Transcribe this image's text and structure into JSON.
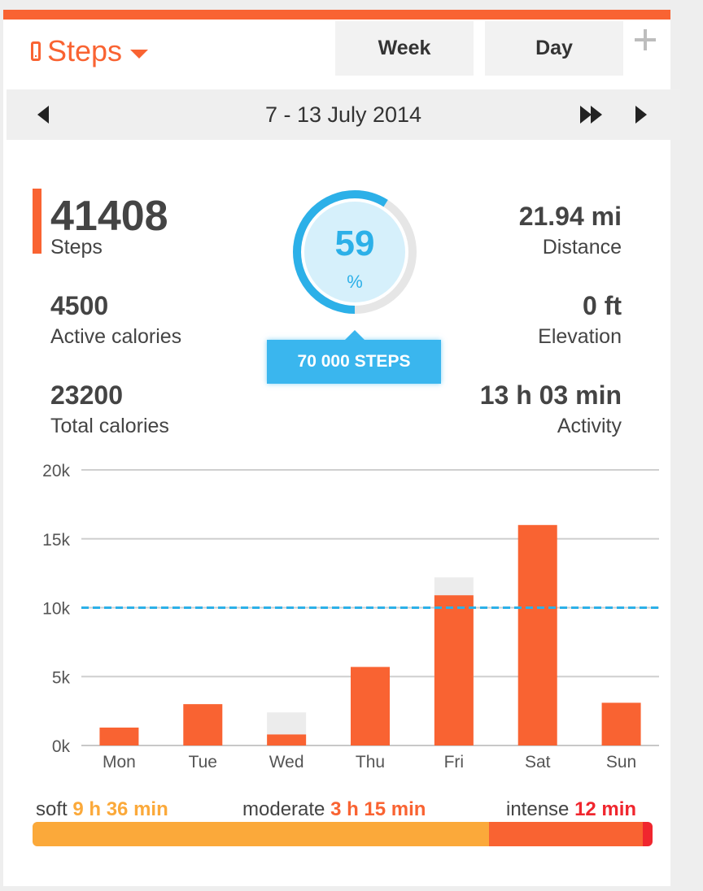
{
  "header": {
    "metric_label": "Steps",
    "tabs": [
      {
        "label": "Week",
        "selected": true
      },
      {
        "label": "Day",
        "selected": false
      }
    ],
    "add_icon": "plus-icon"
  },
  "date_nav": {
    "range": "7 - 13 July 2014",
    "prev_icon": "triangle-left-icon",
    "fast_forward_icon": "fast-forward-icon",
    "next_icon": "triangle-right-icon"
  },
  "summary": {
    "steps": {
      "value": "41408",
      "label": "Steps"
    },
    "active_calories": {
      "value": "4500",
      "label": "Active calories"
    },
    "total_calories": {
      "value": "23200",
      "label": "Total calories"
    },
    "distance": {
      "value": "21.94 mi",
      "label": "Distance"
    },
    "elevation": {
      "value": "0 ft",
      "label": "Elevation"
    },
    "activity": {
      "value": "13 h 03 min",
      "label": "Activity"
    }
  },
  "goal": {
    "percent": "59",
    "percent_symbol": "%",
    "progress_fraction": 0.59,
    "label": "70 000 STEPS"
  },
  "colors": {
    "accent": "#f96332",
    "blue": "#2cb0e8",
    "soft": "#fba93a",
    "moderate": "#f96332",
    "intense": "#f0262e",
    "ghost_bar": "#ececec"
  },
  "chart_data": {
    "type": "bar",
    "categories": [
      "Mon",
      "Tue",
      "Wed",
      "Thu",
      "Fri",
      "Sat",
      "Sun"
    ],
    "series": [
      {
        "values": [
          1300,
          3000,
          800,
          5700,
          10900,
          16000,
          3100
        ]
      },
      {
        "values": [
          1300,
          3000,
          2400,
          5700,
          12200,
          16000,
          3100
        ]
      }
    ],
    "yticks": [
      "0k",
      "5k",
      "10k",
      "15k",
      "20k"
    ],
    "ylim": [
      0,
      20000
    ],
    "goal_line": 10000,
    "grid": true
  },
  "activity": {
    "soft": {
      "label": "soft",
      "value": "9 h 36 min",
      "minutes": 576
    },
    "moderate": {
      "label": "moderate",
      "value": "3 h 15 min",
      "minutes": 195
    },
    "intense": {
      "label": "intense",
      "value": "12 min",
      "minutes": 12
    }
  }
}
